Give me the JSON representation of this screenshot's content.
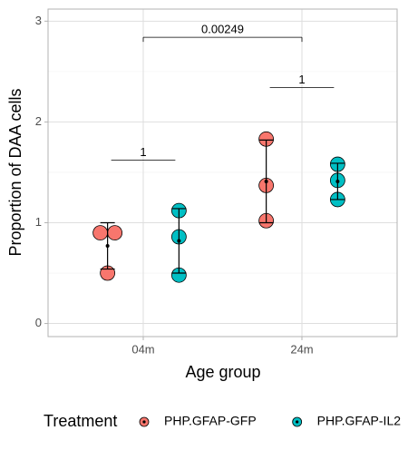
{
  "chart_data": {
    "type": "dotplot",
    "x_label": "Age group",
    "y_label": "Proportion of DAA cells",
    "categories": [
      "04m",
      "24m"
    ],
    "ylim": [
      -0.13,
      3.12
    ],
    "yticks": [
      0,
      1,
      2,
      3
    ],
    "grid": true,
    "legend_title": "Treatment",
    "legend_position": "bottom",
    "series": [
      {
        "name": "PHP.GFAP-GFP",
        "color": "#F8766D",
        "values": [
          [
            0.9,
            0.9,
            0.5
          ],
          [
            1.83,
            1.37,
            1.02
          ]
        ],
        "mean": [
          0.77,
          1.41
        ],
        "sd": [
          0.23,
          0.41
        ]
      },
      {
        "name": "PHP.GFAP-IL2",
        "color": "#00BFC4",
        "values": [
          [
            1.12,
            0.86,
            0.48
          ],
          [
            1.58,
            1.42,
            1.23
          ]
        ],
        "mean": [
          0.82,
          1.41
        ],
        "sd": [
          0.32,
          0.18
        ]
      }
    ],
    "comparisons": [
      {
        "p": 1,
        "y": 1.62,
        "groups": [
          "04m"
        ]
      },
      {
        "p": 0.00249,
        "y": 2.84,
        "groups": [
          "04m",
          "24m"
        ]
      },
      {
        "p": 1,
        "y": 2.34,
        "groups": [
          "24m"
        ]
      }
    ]
  }
}
